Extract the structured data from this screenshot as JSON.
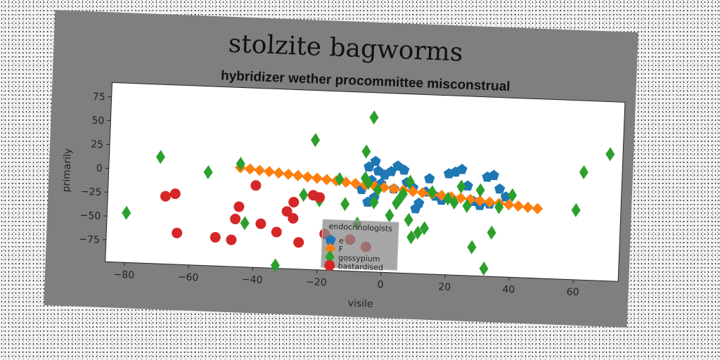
{
  "chart_data": {
    "type": "scatter",
    "title": "stolzite bagworms",
    "subtitle": "hybridizer wether procommittee misconstrual",
    "xlabel": "visile",
    "ylabel": "primarily",
    "xlim": [
      -86,
      74
    ],
    "ylim": [
      -98,
      90
    ],
    "xticks": [
      -80,
      -60,
      -40,
      -20,
      0,
      20,
      40,
      60
    ],
    "yticks": [
      75,
      50,
      25,
      0,
      -25,
      -50,
      -75
    ],
    "grid": false,
    "legend": {
      "title": "endocrinologists",
      "placement": "lower-center"
    },
    "series": [
      {
        "name": "e",
        "color": "#1f77b4",
        "marker": "pentagon",
        "points": [
          [
            -5,
            12
          ],
          [
            -3,
            18
          ],
          [
            -2,
            8
          ],
          [
            -4,
            -2
          ],
          [
            -1,
            -5
          ],
          [
            -3,
            -20
          ],
          [
            -5,
            -25
          ],
          [
            0,
            4
          ],
          [
            2,
            8
          ],
          [
            4,
            14
          ],
          [
            6,
            10
          ],
          [
            7,
            -3
          ],
          [
            9,
            -8
          ],
          [
            11,
            -24
          ],
          [
            13,
            -12
          ],
          [
            16,
            -16
          ],
          [
            18,
            -20
          ],
          [
            20,
            8
          ],
          [
            22,
            10
          ],
          [
            24,
            13
          ],
          [
            26,
            -4
          ],
          [
            28,
            -20
          ],
          [
            30,
            -24
          ],
          [
            32,
            6
          ],
          [
            34,
            8
          ],
          [
            36,
            -6
          ],
          [
            38,
            -14
          ],
          [
            14,
            2
          ],
          [
            3,
            -10
          ],
          [
            -7,
            -12
          ],
          [
            10,
            -30
          ],
          [
            33,
            -22
          ]
        ]
      },
      {
        "name": "F",
        "color": "#ff7f0e",
        "marker": "diamond",
        "points": [
          [
            -45,
            6
          ],
          [
            -42,
            5
          ],
          [
            -39,
            4
          ],
          [
            -36,
            3
          ],
          [
            -33,
            2
          ],
          [
            -30,
            1
          ],
          [
            -27,
            0
          ],
          [
            -24,
            -1
          ],
          [
            -21,
            -2
          ],
          [
            -18,
            -3
          ],
          [
            -15,
            -4
          ],
          [
            -12,
            -5
          ],
          [
            -9,
            -6
          ],
          [
            -6,
            -7
          ],
          [
            -3,
            -8
          ],
          [
            0,
            -9
          ],
          [
            3,
            -10
          ],
          [
            6,
            -11
          ],
          [
            9,
            -12
          ],
          [
            12,
            -13
          ],
          [
            15,
            -14
          ],
          [
            18,
            -15
          ],
          [
            21,
            -16
          ],
          [
            24,
            -17
          ],
          [
            27,
            -18
          ],
          [
            30,
            -19
          ],
          [
            33,
            -20
          ],
          [
            36,
            -21
          ],
          [
            39,
            -22
          ],
          [
            42,
            -23
          ],
          [
            45,
            -24
          ],
          [
            48,
            -25
          ]
        ]
      },
      {
        "name": "gossypium",
        "color": "#2ca02c",
        "marker": "thin_diamond",
        "points": [
          [
            -80,
            -46
          ],
          [
            -70,
            14
          ],
          [
            -55,
            0
          ],
          [
            -45,
            10
          ],
          [
            -43,
            -52
          ],
          [
            -33,
            -95
          ],
          [
            -25,
            -20
          ],
          [
            -22,
            38
          ],
          [
            -20,
            -25
          ],
          [
            -14,
            -2
          ],
          [
            -12,
            -28
          ],
          [
            -8,
            -48
          ],
          [
            -6,
            28
          ],
          [
            -6,
            0
          ],
          [
            -5,
            -5
          ],
          [
            -3,
            -25
          ],
          [
            -4,
            64
          ],
          [
            -2,
            -12
          ],
          [
            2,
            -38
          ],
          [
            4,
            -25
          ],
          [
            5,
            -20
          ],
          [
            6,
            -15
          ],
          [
            8,
            -2
          ],
          [
            8,
            -42
          ],
          [
            9,
            -60
          ],
          [
            11,
            -55
          ],
          [
            13,
            -50
          ],
          [
            15,
            -12
          ],
          [
            20,
            -18
          ],
          [
            22,
            -22
          ],
          [
            24,
            -5
          ],
          [
            26,
            -25
          ],
          [
            28,
            -68
          ],
          [
            30,
            -8
          ],
          [
            32,
            -90
          ],
          [
            34,
            -52
          ],
          [
            36,
            -25
          ],
          [
            40,
            -12
          ],
          [
            60,
            -25
          ],
          [
            62,
            15
          ],
          [
            70,
            35
          ]
        ]
      },
      {
        "name": "bastardised",
        "color": "#d62728",
        "marker": "circle",
        "points": [
          [
            -68,
            -27
          ],
          [
            -65,
            -24
          ],
          [
            -64,
            -65
          ],
          [
            -52,
            -68
          ],
          [
            -47,
            -70
          ],
          [
            -46,
            -48
          ],
          [
            -45,
            -35
          ],
          [
            -40,
            -12
          ],
          [
            -38,
            -52
          ],
          [
            -33,
            -60
          ],
          [
            -30,
            -38
          ],
          [
            -28,
            -28
          ],
          [
            -28,
            -45
          ],
          [
            -26,
            -70
          ],
          [
            -22,
            -20
          ],
          [
            -20,
            -22
          ],
          [
            -18,
            -60
          ],
          [
            -10,
            -65
          ],
          [
            -5,
            -72
          ]
        ]
      }
    ]
  }
}
